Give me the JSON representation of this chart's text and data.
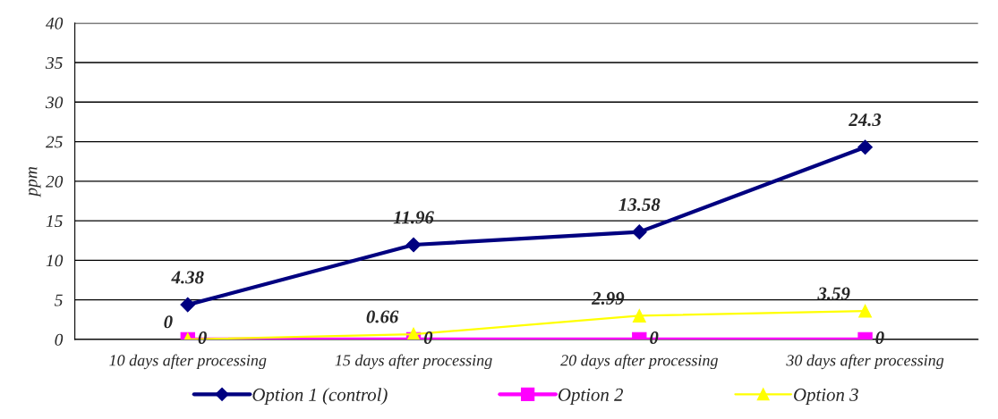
{
  "chart_data": {
    "type": "line",
    "ylabel": "ppm",
    "categories": [
      "10 days after processing",
      "15 days after processing",
      "20 days after processing",
      "30 days after processing"
    ],
    "series": [
      {
        "name": "Option 1 (control)",
        "color": "#000080",
        "marker": "diamond",
        "values": [
          4.38,
          11.96,
          13.58,
          24.3
        ]
      },
      {
        "name": "Option 2",
        "color": "#ff00ff",
        "marker": "square",
        "values": [
          0,
          0,
          0,
          0
        ]
      },
      {
        "name": "Option 3",
        "color": "#ffff00",
        "marker": "triangle",
        "values": [
          0,
          0.66,
          2.99,
          3.59
        ]
      }
    ],
    "ylim": [
      0,
      40
    ],
    "yticks": [
      0,
      5,
      10,
      15,
      20,
      25,
      30,
      35,
      40
    ],
    "grid": "y",
    "legend": "bottom",
    "data_labels": true
  }
}
